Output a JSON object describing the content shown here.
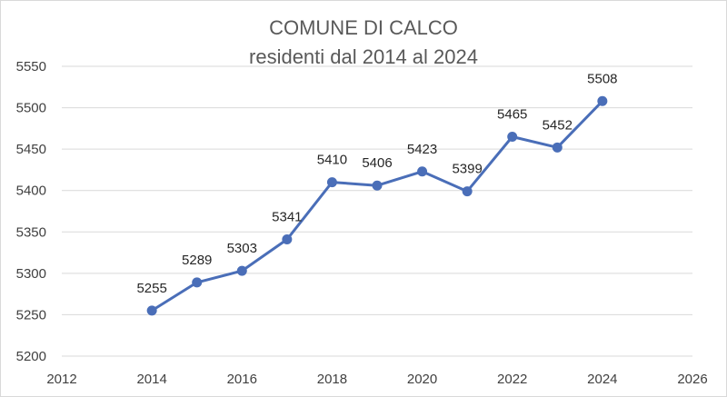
{
  "chart_data": {
    "type": "line",
    "title": "COMUNE DI CALCO",
    "subtitle": "residenti dal 2014 al 2024",
    "xlabel": "",
    "ylabel": "",
    "xlim": [
      2012,
      2026
    ],
    "ylim": [
      5200,
      5550
    ],
    "xticks": [
      2012,
      2014,
      2016,
      2018,
      2020,
      2022,
      2024,
      2026
    ],
    "yticks": [
      5200,
      5250,
      5300,
      5350,
      5400,
      5450,
      5500,
      5550
    ],
    "grid": "horizontal",
    "legend": "none",
    "color": "#4a6eb8",
    "x": [
      2014,
      2015,
      2016,
      2017,
      2018,
      2019,
      2020,
      2021,
      2022,
      2023,
      2024
    ],
    "series": [
      {
        "values": [
          5255,
          5289,
          5303,
          5341,
          5410,
          5406,
          5423,
          5399,
          5465,
          5452,
          5508
        ]
      }
    ]
  }
}
